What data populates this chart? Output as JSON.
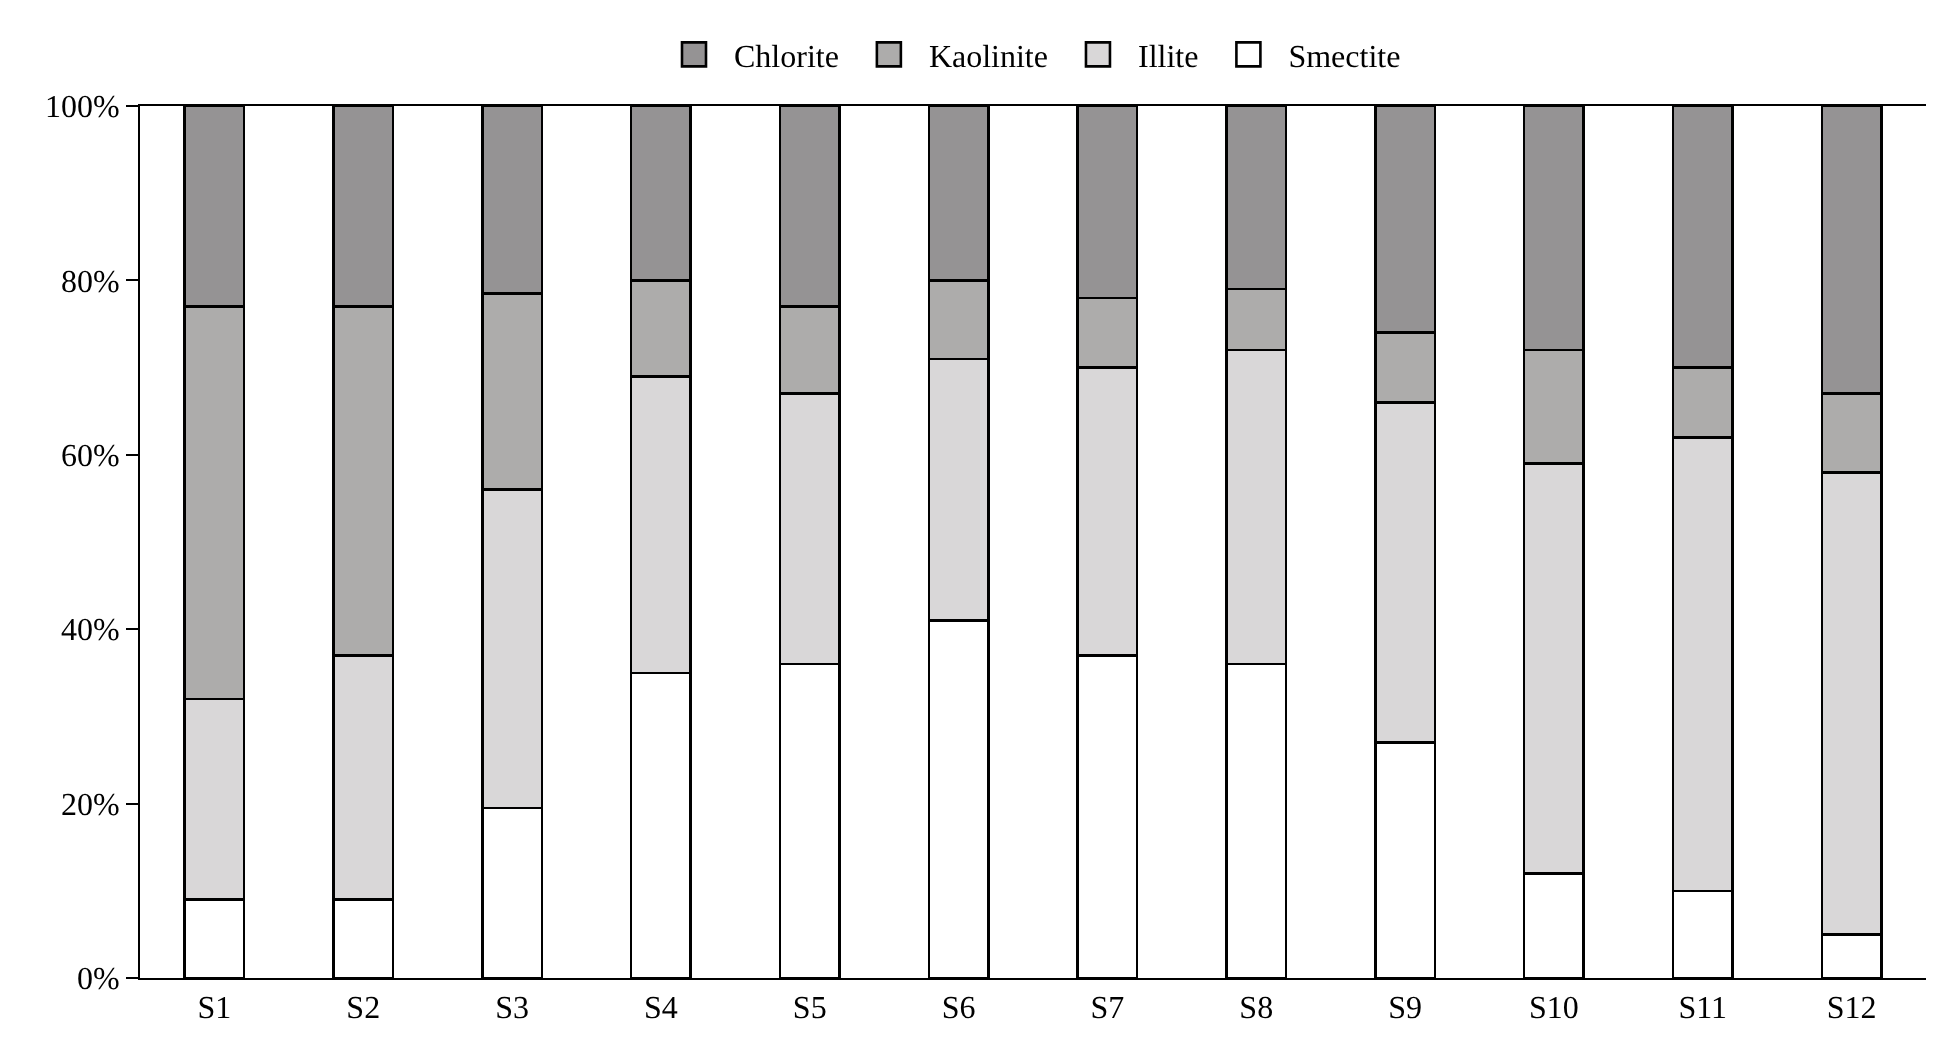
{
  "chart_data": {
    "type": "bar",
    "stacked": true,
    "categories": [
      "S1",
      "S2",
      "S3",
      "S4",
      "S5",
      "S6",
      "S7",
      "S8",
      "S9",
      "S10",
      "S11",
      "S12"
    ],
    "series": [
      {
        "name": "Smectite",
        "color": "#ffffff",
        "values": [
          9,
          9,
          19.5,
          35,
          36,
          41,
          37,
          36,
          27,
          12,
          10,
          5
        ]
      },
      {
        "name": "Illite",
        "color": "#d9d7d8",
        "values": [
          23,
          28,
          36.5,
          34,
          31,
          30,
          33,
          36,
          39,
          47,
          52,
          53
        ]
      },
      {
        "name": "Kaolinite",
        "color": "#adacab",
        "values": [
          45,
          40,
          22.5,
          11,
          10,
          9,
          8,
          7,
          8,
          13,
          8,
          9
        ]
      },
      {
        "name": "Chlorite",
        "color": "#959394",
        "values": [
          23,
          23,
          21.5,
          20,
          23,
          20,
          22,
          21,
          26,
          28,
          30,
          33
        ]
      }
    ],
    "ylim": [
      0,
      100
    ],
    "yticks": [
      {
        "value": 0,
        "label": "0%"
      },
      {
        "value": 20,
        "label": "20%"
      },
      {
        "value": 40,
        "label": "40%"
      },
      {
        "value": 60,
        "label": "60%"
      },
      {
        "value": 80,
        "label": "80%"
      },
      {
        "value": 100,
        "label": "100%"
      }
    ],
    "grid": false,
    "legend": "top"
  }
}
